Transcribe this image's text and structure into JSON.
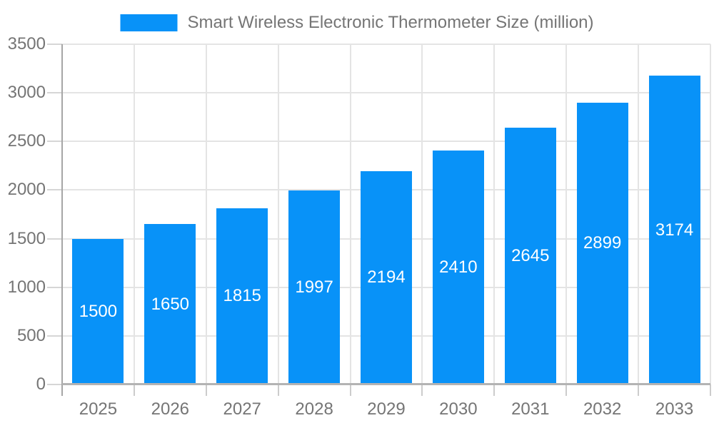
{
  "chart_data": {
    "type": "bar",
    "title": "Smart Wireless Electronic Thermometer Size (million)",
    "legend_position": "top",
    "categories": [
      "2025",
      "2026",
      "2027",
      "2028",
      "2029",
      "2030",
      "2031",
      "2032",
      "2033"
    ],
    "values": [
      1500,
      1650,
      1815,
      1997,
      2194,
      2410,
      2645,
      2899,
      3174
    ],
    "xlabel": "",
    "ylabel": "",
    "ylim": [
      0,
      3500
    ],
    "yticks": [
      0,
      500,
      1000,
      1500,
      2000,
      2500,
      3000,
      3500
    ],
    "grid": true,
    "bar_value_labels_inside": true,
    "colors": {
      "bar": "#0892f8",
      "bar_value_label": "#ffffff",
      "axis_text": "#757575",
      "title_text": "#757575",
      "gridline": "#e4e4e4",
      "y_axis_line": "#a6a6a6",
      "x_axis_line": "#b3b3b3",
      "tick": "#cccccc"
    }
  }
}
